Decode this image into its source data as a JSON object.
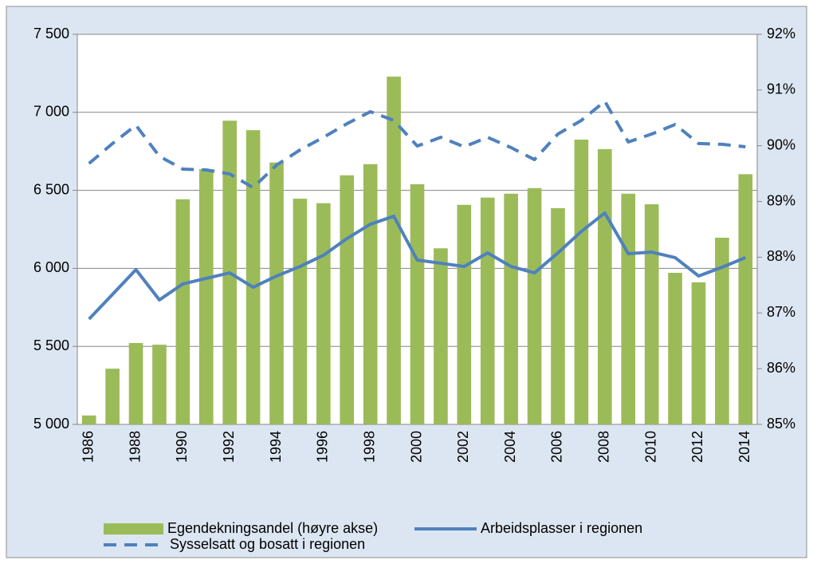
{
  "chart_data": {
    "type": "combo",
    "categories": [
      "1986",
      null,
      "1988",
      null,
      "1990",
      null,
      "1992",
      null,
      "1994",
      null,
      "1996",
      null,
      "1998",
      null,
      "2000",
      null,
      "2002",
      null,
      "2004",
      null,
      "2006",
      null,
      "2008",
      null,
      "2010",
      null,
      "2012",
      null,
      "2014"
    ],
    "series": [
      {
        "name": "Egendekningsandel (høyre akse)",
        "type": "bar",
        "axis": "y2",
        "color": "#9bbb59",
        "values": [
          85.16,
          86.0,
          86.46,
          86.43,
          89.04,
          89.58,
          90.45,
          90.28,
          89.7,
          89.05,
          88.97,
          89.47,
          89.67,
          91.24,
          89.31,
          88.16,
          88.94,
          89.07,
          89.14,
          89.24,
          88.88,
          90.11,
          89.94,
          89.14,
          88.95,
          87.72,
          87.55,
          88.35,
          89.49
        ]
      },
      {
        "name": "Arbeidsplasser i regionen",
        "type": "line",
        "color": "#4f81bd",
        "dashed": false,
        "values": [
          5675,
          5833,
          5992,
          5798,
          5900,
          5936,
          5971,
          5879,
          5951,
          6012,
          6084,
          6191,
          6283,
          6334,
          6053,
          6033,
          6012,
          6099,
          6012,
          5971,
          6099,
          6237,
          6355,
          6094,
          6104,
          6069,
          5951,
          6007,
          6069
        ]
      },
      {
        "name": "Sysselsatt og bosatt i regionen",
        "type": "line",
        "color": "#4f81bd",
        "dashed": true,
        "values": [
          6672,
          6800,
          6917,
          6718,
          6636,
          6631,
          6605,
          6518,
          6662,
          6759,
          6840,
          6927,
          7004,
          6948,
          6784,
          6840,
          6779,
          6840,
          6774,
          6697,
          6861,
          6948,
          7071,
          6810,
          6861,
          6922,
          6800,
          6795,
          6779
        ]
      }
    ],
    "ylim": [
      5000,
      7500
    ],
    "yticks": [
      {
        "value": 5000,
        "label": "5 000"
      },
      {
        "value": 5500,
        "label": "5 500"
      },
      {
        "value": 6000,
        "label": "6 000"
      },
      {
        "value": 6500,
        "label": "6 500"
      },
      {
        "value": 7000,
        "label": "7 000"
      },
      {
        "value": 7500,
        "label": "7 500"
      }
    ],
    "y2lim": [
      85,
      92
    ],
    "y2ticks": [
      {
        "value": 85,
        "label": "85%"
      },
      {
        "value": 86,
        "label": "86%"
      },
      {
        "value": 87,
        "label": "87%"
      },
      {
        "value": 88,
        "label": "88%"
      },
      {
        "value": 89,
        "label": "89%"
      },
      {
        "value": 90,
        "label": "90%"
      },
      {
        "value": 91,
        "label": "91%"
      },
      {
        "value": 92,
        "label": "92%"
      }
    ],
    "grid": true,
    "legend": "bottom"
  }
}
